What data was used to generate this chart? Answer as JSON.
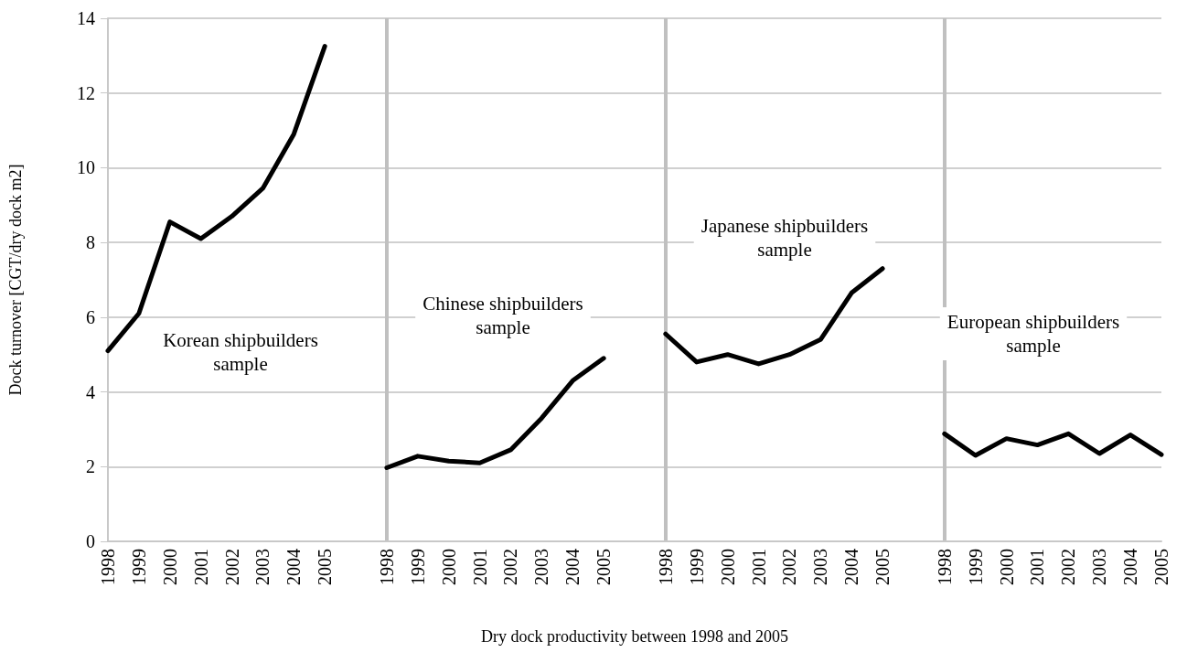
{
  "chart_data": {
    "type": "line",
    "xlabel": "Dry dock productivity between 1998 and 2005",
    "ylabel": "Dock turnover [CGT/dry dock m2]",
    "categories": [
      "1998",
      "1999",
      "2000",
      "2001",
      "2002",
      "2003",
      "2004",
      "2005",
      null,
      "1998",
      "1999",
      "2000",
      "2001",
      "2002",
      "2003",
      "2004",
      "2005",
      null,
      "1998",
      "1999",
      "2000",
      "2001",
      "2002",
      "2003",
      "2004",
      "2005",
      null,
      "1998",
      "1999",
      "2000",
      "2001",
      "2002",
      "2003",
      "2004",
      "2005"
    ],
    "series": [
      {
        "color": "#000000",
        "values": [
          5.1,
          6.1,
          8.55,
          8.1,
          8.7,
          9.45,
          10.9,
          13.25,
          null,
          1.97,
          2.28,
          2.15,
          2.1,
          2.45,
          3.3,
          4.3,
          4.9,
          null,
          5.55,
          4.8,
          5.0,
          4.75,
          5.0,
          5.4,
          6.65,
          7.3,
          null,
          2.88,
          2.3,
          2.75,
          2.58,
          2.88,
          2.35,
          2.85,
          2.32
        ]
      }
    ],
    "ylim": [
      0,
      14
    ],
    "yticks": [
      0,
      2,
      4,
      6,
      8,
      10,
      12,
      14
    ],
    "grid": true,
    "marker": "none",
    "line_style": "solid",
    "annotations": [
      "Korean shipbuilders\nsample",
      "Chinese shipbuilders\nsample",
      "Japanese shipbuilders\nsample",
      "European shipbuilders\nsample"
    ]
  }
}
